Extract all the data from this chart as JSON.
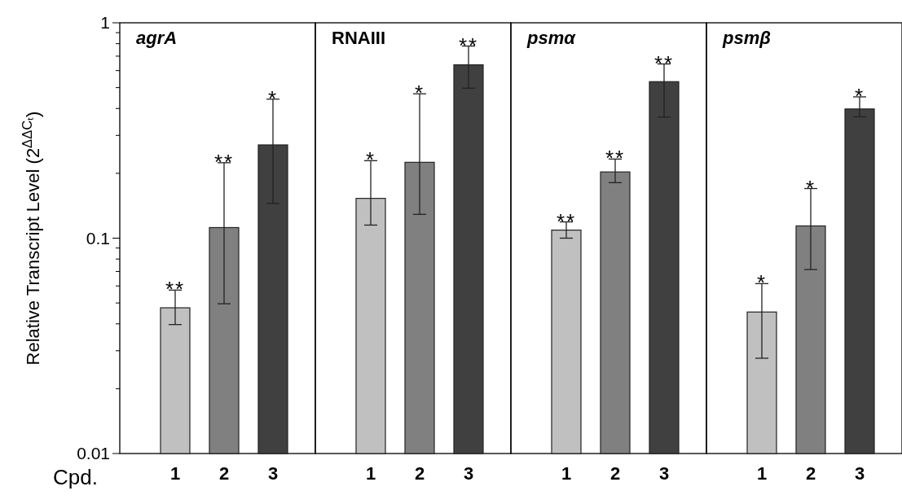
{
  "chart_data": [
    {
      "type": "bar",
      "title": "agrA",
      "xlabel": "Cpd.",
      "ylabel": "Relative Transcript Level (2$^{ΔΔCₜ}$)",
      "categories": [
        "1",
        "2",
        "3"
      ],
      "values": [
        0.0475,
        0.112,
        0.271
      ],
      "colors": [
        "#c0c0c0",
        "#808080",
        "#404040"
      ],
      "errors": [
        [
          0.0397,
          0.0574
        ],
        [
          0.0496,
          0.224
        ],
        [
          0.145,
          0.442
        ]
      ],
      "log": true,
      "ylim": [
        0.01,
        1
      ],
      "yticks": [
        0.01,
        {
          "value": 0.02,
          "label": null
        },
        {
          "value": 0.03,
          "label": null
        },
        {
          "value": 0.04,
          "label": null
        },
        {
          "value": 0.05,
          "label": null
        },
        {
          "value": 0.06,
          "label": null
        },
        {
          "value": 0.07,
          "label": null
        },
        {
          "value": 0.08,
          "label": null
        },
        {
          "value": 0.09,
          "label": null
        },
        0.1,
        {
          "value": 0.2,
          "label": null
        },
        {
          "value": 0.3,
          "label": null
        },
        {
          "value": 0.4,
          "label": null
        },
        {
          "value": 0.5,
          "label": null
        },
        {
          "value": 0.6,
          "label": null
        },
        {
          "value": 0.7,
          "label": null
        },
        {
          "value": 0.8,
          "label": null
        },
        {
          "value": 0.9,
          "label": null
        },
        1
      ],
      "annotations": [
        {
          "text": "**",
          "x": "1",
          "y": 0.0574
        },
        {
          "text": "**",
          "x": "2",
          "y": 0.224
        },
        {
          "text": "*",
          "x": "3",
          "y": 0.442
        }
      ]
    },
    {
      "type": "bar",
      "title": "RNAIII",
      "categories": [
        "1",
        "2",
        "3"
      ],
      "values": [
        0.153,
        0.225,
        0.638
      ],
      "colors": [
        "#c0c0c0",
        "#808080",
        "#404040"
      ],
      "errors": [
        [
          0.115,
          0.229
        ],
        [
          0.129,
          0.468
        ],
        [
          0.497,
          0.78
        ]
      ],
      "log": true,
      "ylim": [
        0.01,
        1
      ],
      "tick_labels": "x",
      "annotations": [
        {
          "text": "*",
          "x": "1",
          "y": 0.229
        },
        {
          "text": "*",
          "x": "2",
          "y": 0.468
        },
        {
          "text": "**",
          "x": "3",
          "y": 0.78
        }
      ]
    },
    {
      "type": "bar",
      "title": "psmα",
      "categories": [
        "1",
        "2",
        "3"
      ],
      "values": [
        0.109,
        0.203,
        0.533
      ],
      "colors": [
        "#c0c0c0",
        "#808080",
        "#404040"
      ],
      "errors": [
        [
          0.1,
          0.119
        ],
        [
          0.181,
          0.233
        ],
        [
          0.365,
          0.644
        ]
      ],
      "log": true,
      "ylim": [
        0.01,
        1
      ],
      "tick_labels": "x",
      "annotations": [
        {
          "text": "**",
          "x": "1",
          "y": 0.119
        },
        {
          "text": "**",
          "x": "2",
          "y": 0.233
        },
        {
          "text": "**",
          "x": "3",
          "y": 0.644
        }
      ]
    },
    {
      "type": "bar",
      "title": "psmβ",
      "categories": [
        "1",
        "2",
        "3"
      ],
      "values": [
        0.0454,
        0.114,
        0.398
      ],
      "colors": [
        "#c0c0c0",
        "#808080",
        "#404040"
      ],
      "errors": [
        [
          0.0277,
          0.0615
        ],
        [
          0.0715,
          0.17
        ],
        [
          0.366,
          0.453
        ]
      ],
      "log": true,
      "ylim": [
        0.01,
        1
      ],
      "tick_labels": "x",
      "annotations": [
        {
          "text": "*",
          "x": "1",
          "y": 0.0615
        },
        {
          "text": "*",
          "x": "2",
          "y": 0.17
        },
        {
          "text": "*",
          "x": "3",
          "y": 0.453
        }
      ]
    }
  ]
}
